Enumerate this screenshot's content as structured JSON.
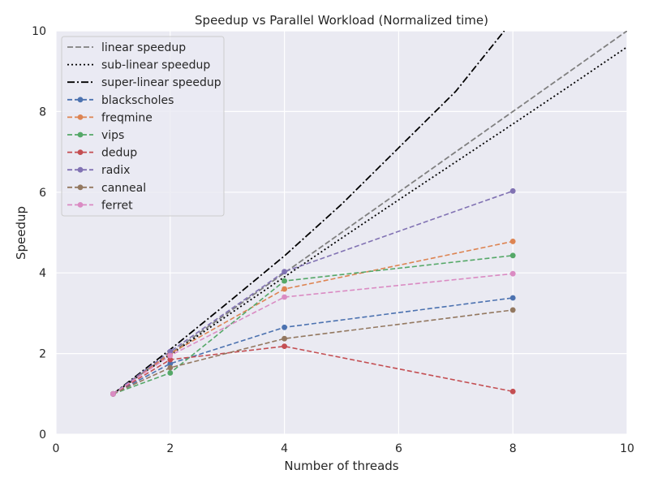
{
  "chart_data": {
    "type": "line",
    "title": "Speedup vs Parallel Workload (Normalized time)",
    "xlabel": "Number of threads",
    "ylabel": "Speedup",
    "xlim": [
      0,
      10
    ],
    "ylim": [
      0,
      10
    ],
    "xticks": [
      0,
      2,
      4,
      6,
      8,
      10
    ],
    "yticks": [
      0,
      2,
      4,
      6,
      8,
      10
    ],
    "grid": true,
    "legend_position": "top-left",
    "reference_lines": [
      {
        "name": "linear speedup",
        "style": "dashed",
        "color": "#808080",
        "x": [
          1,
          2,
          3,
          4,
          5,
          6,
          7,
          8,
          9,
          10
        ],
        "y": [
          1,
          2,
          3,
          4,
          5,
          6,
          7,
          8,
          9,
          10
        ]
      },
      {
        "name": "sub-linear speedup",
        "style": "dotted",
        "color": "#000000",
        "x": [
          1,
          2,
          3,
          4,
          5,
          6,
          7,
          8,
          9,
          10
        ],
        "y": [
          1,
          1.97,
          2.94,
          3.9,
          4.86,
          5.81,
          6.75,
          7.69,
          8.64,
          9.6
        ]
      },
      {
        "name": "super-linear speedup",
        "style": "dashdot",
        "color": "#000000",
        "x": [
          1,
          2,
          3,
          4,
          5,
          6,
          7,
          7.85
        ],
        "y": [
          1,
          2.1,
          3.25,
          4.42,
          5.7,
          7.1,
          8.5,
          10.0
        ]
      }
    ],
    "x": [
      1,
      2,
      4,
      8
    ],
    "series": [
      {
        "name": "blackscholes",
        "color": "#4c72b0",
        "values": [
          1.0,
          1.75,
          2.65,
          3.38
        ]
      },
      {
        "name": "freqmine",
        "color": "#dd8452",
        "values": [
          1.0,
          2.0,
          3.6,
          4.78
        ]
      },
      {
        "name": "vips",
        "color": "#55a868",
        "values": [
          1.0,
          1.52,
          3.8,
          4.43
        ]
      },
      {
        "name": "dedup",
        "color": "#c44e52",
        "values": [
          1.0,
          1.85,
          2.18,
          1.06
        ]
      },
      {
        "name": "radix",
        "color": "#8172b3",
        "values": [
          1.0,
          2.05,
          4.03,
          6.03
        ]
      },
      {
        "name": "canneal",
        "color": "#937860",
        "values": [
          1.0,
          1.65,
          2.37,
          3.08
        ]
      },
      {
        "name": "ferret",
        "color": "#da8bc3",
        "values": [
          1.0,
          1.95,
          3.4,
          3.98
        ]
      }
    ]
  }
}
